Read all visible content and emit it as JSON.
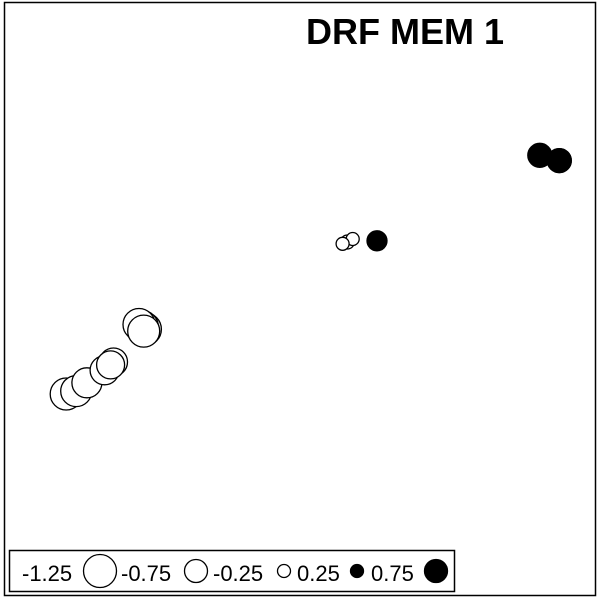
{
  "chart_data": {
    "type": "scatter",
    "title": "DRF MEM 1",
    "xlabel": "",
    "ylabel": "",
    "axes_shown": false,
    "grid": false,
    "xlim": [
      0,
      1
    ],
    "ylim": [
      0,
      1
    ],
    "legend_position": "bottom-left",
    "legend": [
      {
        "label": "-1.25",
        "value": -1.25
      },
      {
        "label": "-0.75",
        "value": -0.75
      },
      {
        "label": "-0.25",
        "value": -0.25
      },
      {
        "label": "0.25",
        "value": 0.25
      },
      {
        "label": "0.75",
        "value": 0.75
      }
    ],
    "points": [
      {
        "x": 0.905,
        "y": 0.742,
        "value": 0.8
      },
      {
        "x": 0.938,
        "y": 0.733,
        "value": -0.8
      },
      {
        "x": 0.938,
        "y": 0.733,
        "value": 0.8
      },
      {
        "x": 0.63,
        "y": 0.598,
        "value": 0.6
      },
      {
        "x": 0.589,
        "y": 0.601,
        "value": -0.25
      },
      {
        "x": 0.58,
        "y": 0.596,
        "value": -0.3
      },
      {
        "x": 0.572,
        "y": 0.593,
        "value": -0.25
      },
      {
        "x": 0.238,
        "y": 0.449,
        "value": -1.25
      },
      {
        "x": 0.233,
        "y": 0.453,
        "value": -1.25
      },
      {
        "x": 0.228,
        "y": 0.457,
        "value": -1.2
      },
      {
        "x": 0.236,
        "y": 0.446,
        "value": -1.2
      },
      {
        "x": 0.185,
        "y": 0.394,
        "value": -1.0
      },
      {
        "x": 0.18,
        "y": 0.389,
        "value": -1.0
      },
      {
        "x": 0.17,
        "y": 0.38,
        "value": -1.05
      },
      {
        "x": 0.14,
        "y": 0.359,
        "value": -1.1
      },
      {
        "x": 0.122,
        "y": 0.345,
        "value": -1.15
      },
      {
        "x": 0.105,
        "y": 0.34,
        "value": -1.2
      }
    ]
  }
}
